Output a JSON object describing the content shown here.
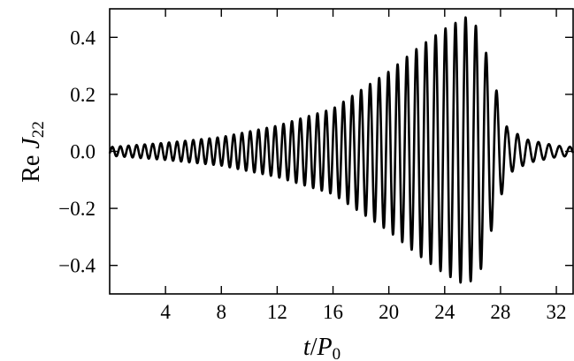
{
  "chart_data": {
    "type": "line",
    "xlabel": {
      "italic_var": "t",
      "slash": "/",
      "base": "P",
      "sub": "0"
    },
    "ylabel": {
      "prefix": "Re ",
      "base": "J",
      "sub": "22"
    },
    "xlim": [
      0,
      33.2
    ],
    "ylim": [
      -0.5,
      0.5
    ],
    "xticks": [
      4,
      8,
      12,
      16,
      20,
      24,
      28,
      32
    ],
    "xtick_labels": [
      "4",
      "8",
      "12",
      "16",
      "20",
      "24",
      "28",
      "32"
    ],
    "yticks": [
      0.4,
      0.2,
      0.0,
      -0.2,
      -0.4
    ],
    "ytick_labels": [
      "0.4",
      "0.2",
      "0.0",
      "−0.2",
      "−0.4"
    ],
    "grid": false,
    "series": [
      {
        "style": "oscillating chirp waveform",
        "color": "#000000",
        "t": [
          0,
          4,
          8,
          12,
          16,
          20,
          22,
          24,
          25.5,
          26.5,
          27.5,
          28.5,
          30,
          32,
          33.2
        ],
        "amplitude": [
          0.015,
          0.03,
          0.05,
          0.09,
          0.15,
          0.28,
          0.36,
          0.43,
          0.47,
          0.43,
          0.25,
          0.08,
          0.04,
          0.02,
          0.015
        ],
        "period": [
          0.58,
          0.58,
          0.58,
          0.6,
          0.62,
          0.66,
          0.68,
          0.71,
          0.73,
          0.74,
          0.75,
          0.75,
          0.75,
          0.75,
          0.75
        ],
        "phase_at_peak_deg": 0,
        "peak_t": 25.5
      }
    ]
  }
}
